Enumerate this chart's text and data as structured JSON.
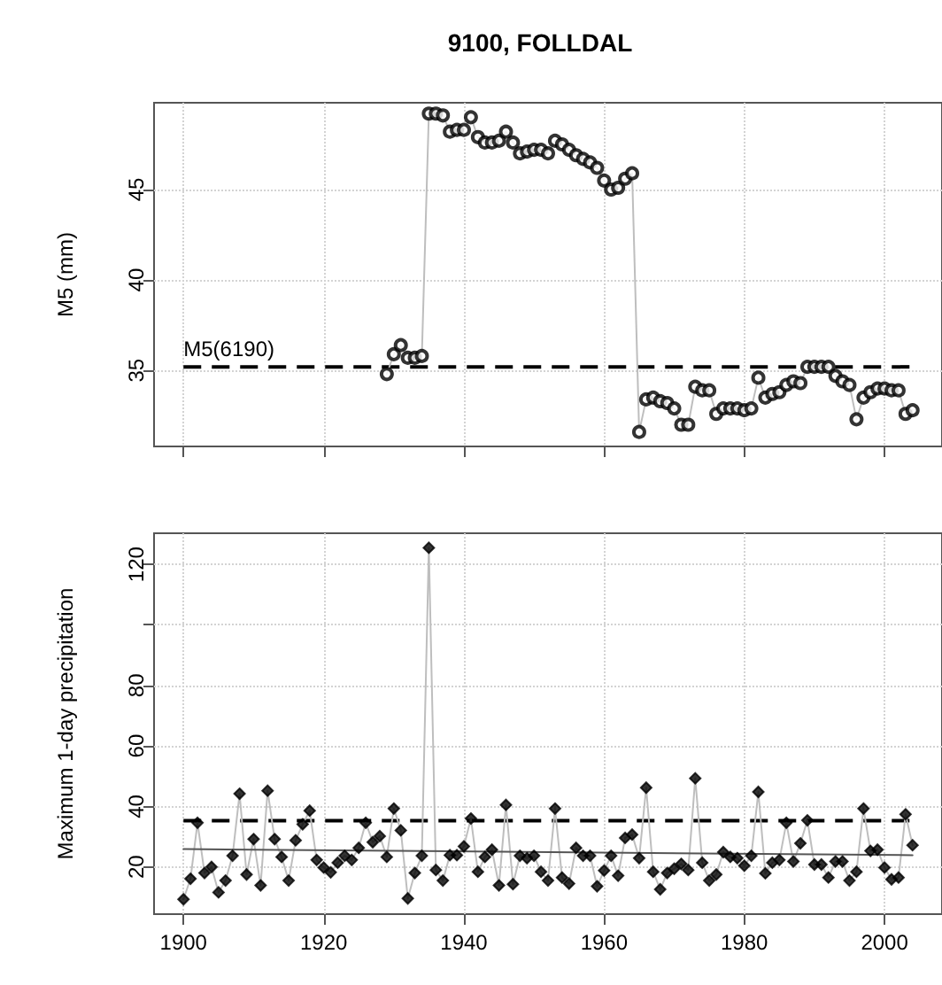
{
  "chart_data": [
    {
      "type": "line",
      "title": "9100, FOLLDAL",
      "ylabel": "M5 (mm)",
      "x": [
        1929,
        1930,
        1931,
        1932,
        1933,
        1934,
        1935,
        1936,
        1937,
        1938,
        1939,
        1940,
        1941,
        1942,
        1943,
        1944,
        1945,
        1946,
        1947,
        1948,
        1949,
        1950,
        1951,
        1952,
        1953,
        1954,
        1955,
        1956,
        1957,
        1958,
        1959,
        1960,
        1961,
        1962,
        1963,
        1964,
        1965,
        1966,
        1967,
        1968,
        1969,
        1970,
        1971,
        1972,
        1973,
        1974,
        1975,
        1976,
        1977,
        1978,
        1979,
        1980,
        1981,
        1982,
        1983,
        1984,
        1985,
        1986,
        1987,
        1988,
        1989,
        1990,
        1991,
        1992,
        1993,
        1994,
        1995,
        1996,
        1997,
        1998,
        1999,
        2000,
        2001,
        2002,
        2003,
        2004
      ],
      "series": [
        {
          "color": "#bebebe",
          "marker": "none",
          "values": [
            34.8,
            35.9,
            36.4,
            35.7,
            35.7,
            35.8,
            49.2,
            49.2,
            49.1,
            48.2,
            48.3,
            48.3,
            49.0,
            47.9,
            47.6,
            47.6,
            47.7,
            48.2,
            47.6,
            47.0,
            47.1,
            47.2,
            47.2,
            47.0,
            47.7,
            47.5,
            47.2,
            46.9,
            46.7,
            46.5,
            46.2,
            45.5,
            45.0,
            45.1,
            45.6,
            45.9,
            31.6,
            33.4,
            33.5,
            33.3,
            33.2,
            32.9,
            32.0,
            32.0,
            34.1,
            33.9,
            33.9,
            32.6,
            32.9,
            32.9,
            32.9,
            32.8,
            32.9,
            34.6,
            33.5,
            33.7,
            33.8,
            34.2,
            34.4,
            34.3,
            35.2,
            35.2,
            35.2,
            35.2,
            34.7,
            34.4,
            34.2,
            32.3,
            33.5,
            33.8,
            34.0,
            34.0,
            33.9,
            33.9,
            32.6,
            32.8
          ]
        },
        {
          "type": "scatter",
          "color": "#000000",
          "marker": "circle",
          "values": [
            34.8,
            35.9,
            36.4,
            35.7,
            35.7,
            35.8,
            49.2,
            49.2,
            49.1,
            48.2,
            48.3,
            48.3,
            49.0,
            47.9,
            47.6,
            47.6,
            47.7,
            48.2,
            47.6,
            47.0,
            47.1,
            47.2,
            47.2,
            47.0,
            47.7,
            47.5,
            47.2,
            46.9,
            46.7,
            46.5,
            46.2,
            45.5,
            45.0,
            45.1,
            45.6,
            45.9,
            31.6,
            33.4,
            33.5,
            33.3,
            33.2,
            32.9,
            32.0,
            32.0,
            34.1,
            33.9,
            33.9,
            32.6,
            32.9,
            32.9,
            32.9,
            32.8,
            32.9,
            34.6,
            33.5,
            33.7,
            33.8,
            34.2,
            34.4,
            34.3,
            35.2,
            35.2,
            35.2,
            35.2,
            34.7,
            34.4,
            34.2,
            32.3,
            33.5,
            33.8,
            34.0,
            34.0,
            33.9,
            33.9,
            32.6,
            32.8
          ]
        }
      ],
      "xlim": [
        1895.8,
        2008.2
      ],
      "xticks": [
        1900,
        1920,
        1940,
        1960,
        1980,
        2000
      ],
      "ylim": [
        30.8,
        49.8
      ],
      "yticks": [
        35,
        40,
        45
      ],
      "ref_lines": [
        {
          "axis": "y",
          "value": 35.2,
          "label": "M5(6190)",
          "color": "#000000",
          "line_style": "dashed"
        }
      ],
      "grid": true,
      "tick_labels": "y"
    },
    {
      "type": "line",
      "ylabel": "Maximum 1-day precipitation",
      "x": [
        1900,
        1901,
        1902,
        1903,
        1904,
        1905,
        1906,
        1907,
        1908,
        1909,
        1910,
        1911,
        1912,
        1913,
        1914,
        1915,
        1916,
        1917,
        1918,
        1919,
        1920,
        1921,
        1922,
        1923,
        1924,
        1925,
        1926,
        1927,
        1928,
        1929,
        1930,
        1931,
        1932,
        1933,
        1934,
        1935,
        1936,
        1937,
        1938,
        1939,
        1940,
        1941,
        1942,
        1943,
        1944,
        1945,
        1946,
        1947,
        1948,
        1949,
        1950,
        1951,
        1952,
        1953,
        1954,
        1955,
        1956,
        1957,
        1958,
        1959,
        1960,
        1961,
        1962,
        1963,
        1964,
        1965,
        1966,
        1967,
        1968,
        1969,
        1970,
        1971,
        1972,
        1973,
        1974,
        1975,
        1976,
        1977,
        1978,
        1979,
        1980,
        1981,
        1982,
        1983,
        1984,
        1985,
        1986,
        1987,
        1988,
        1989,
        1990,
        1991,
        1992,
        1993,
        1994,
        1995,
        1996,
        1997,
        1998,
        1999,
        2000,
        2001,
        2002,
        2003,
        2004
      ],
      "series": [
        {
          "color": "#bebebe",
          "marker": "none",
          "values": [
            9.3,
            16.1,
            34.6,
            18.0,
            20.0,
            11.6,
            15.5,
            23.7,
            44.2,
            17.5,
            29.2,
            13.9,
            45.2,
            29.2,
            23.3,
            15.5,
            28.8,
            34.1,
            38.6,
            22.3,
            19.8,
            18.2,
            21.4,
            23.7,
            22.3,
            26.3,
            34.6,
            28.2,
            30.2,
            23.3,
            39.3,
            32.1,
            9.6,
            18.0,
            23.7,
            125.5,
            19.0,
            15.5,
            23.9,
            23.9,
            26.8,
            36.0,
            18.4,
            23.3,
            25.7,
            13.9,
            40.5,
            14.3,
            23.7,
            22.9,
            23.7,
            18.4,
            15.5,
            39.3,
            16.5,
            14.5,
            26.3,
            23.7,
            23.7,
            13.6,
            18.8,
            23.7,
            17.1,
            29.6,
            30.7,
            22.9,
            46.2,
            18.4,
            12.6,
            18.0,
            19.4,
            21.0,
            19.0,
            49.3,
            21.4,
            15.5,
            17.5,
            24.9,
            23.3,
            22.9,
            20.4,
            23.7,
            44.8,
            17.9,
            21.4,
            22.3,
            34.6,
            21.8,
            27.8,
            35.4,
            20.8,
            20.8,
            16.5,
            21.8,
            21.8,
            15.5,
            18.4,
            39.3,
            25.3,
            25.7,
            19.8,
            15.9,
            16.5,
            37.4,
            27.2
          ]
        },
        {
          "type": "scatter",
          "color": "#000000",
          "marker": "diamond",
          "values": [
            9.3,
            16.1,
            34.6,
            18.0,
            20.0,
            11.6,
            15.5,
            23.7,
            44.2,
            17.5,
            29.2,
            13.9,
            45.2,
            29.2,
            23.3,
            15.5,
            28.8,
            34.1,
            38.6,
            22.3,
            19.8,
            18.2,
            21.4,
            23.7,
            22.3,
            26.3,
            34.6,
            28.2,
            30.2,
            23.3,
            39.3,
            32.1,
            9.6,
            18.0,
            23.7,
            125.5,
            19.0,
            15.5,
            23.9,
            23.9,
            26.8,
            36.0,
            18.4,
            23.3,
            25.7,
            13.9,
            40.5,
            14.3,
            23.7,
            22.9,
            23.7,
            18.4,
            15.5,
            39.3,
            16.5,
            14.5,
            26.3,
            23.7,
            23.7,
            13.6,
            18.8,
            23.7,
            17.1,
            29.6,
            30.7,
            22.9,
            46.2,
            18.4,
            12.6,
            18.0,
            19.4,
            21.0,
            19.0,
            49.3,
            21.4,
            15.5,
            17.5,
            24.9,
            23.3,
            22.9,
            20.4,
            23.7,
            44.8,
            17.9,
            21.4,
            22.3,
            34.6,
            21.8,
            27.8,
            35.4,
            20.8,
            20.8,
            16.5,
            21.8,
            21.8,
            15.5,
            18.4,
            39.3,
            25.3,
            25.7,
            19.8,
            15.9,
            16.5,
            37.4,
            27.2
          ]
        },
        {
          "color": "#555555",
          "marker": "none",
          "x": [
            1900,
            2004
          ],
          "values": [
            25.9,
            23.9
          ]
        }
      ],
      "xlim": [
        1895.8,
        2008.2
      ],
      "xticks": [
        1900,
        1920,
        1940,
        1960,
        1980,
        2000
      ],
      "ylim": [
        4.4,
        130.3
      ],
      "yticks": [
        20,
        40,
        60,
        80,
        {
          "value": 100,
          "label": null
        },
        120
      ],
      "ref_lines": [
        {
          "axis": "y",
          "value": 35.3,
          "color": "#000000",
          "line_style": "dashed"
        }
      ],
      "grid": true
    }
  ]
}
